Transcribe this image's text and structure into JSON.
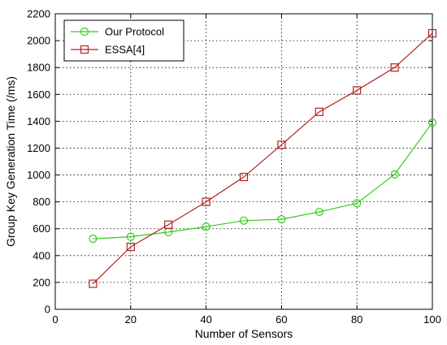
{
  "chart_data": {
    "type": "line",
    "title": "",
    "xlabel": "Number of Sensors",
    "ylabel": "Group Key Generation Time (/ms)",
    "xlim": [
      0,
      100
    ],
    "ylim": [
      0,
      2200
    ],
    "x_ticks": [
      0,
      20,
      40,
      60,
      80,
      100
    ],
    "y_ticks": [
      0,
      200,
      400,
      600,
      800,
      1000,
      1200,
      1400,
      1600,
      1800,
      2000,
      2200
    ],
    "x_tick_labels": [
      "0",
      "20",
      "40",
      "60",
      "80",
      "100"
    ],
    "y_tick_labels": [
      "0",
      "200",
      "400",
      "600",
      "800",
      "1000",
      "1200",
      "1400",
      "1600",
      "1800",
      "2000",
      "2200"
    ],
    "grid": true,
    "legend_position": "top-left",
    "x": [
      10,
      20,
      30,
      40,
      50,
      60,
      70,
      80,
      90,
      100
    ],
    "series": [
      {
        "name": "Our Protocol",
        "color": "#33cc1a",
        "marker": "circle",
        "values": [
          525,
          540,
          575,
          615,
          660,
          670,
          725,
          790,
          1005,
          1390
        ]
      },
      {
        "name": "ESSA[4]",
        "color": "#b22222",
        "marker": "square",
        "values": [
          190,
          465,
          630,
          800,
          985,
          1225,
          1470,
          1630,
          1800,
          2055
        ]
      }
    ]
  }
}
